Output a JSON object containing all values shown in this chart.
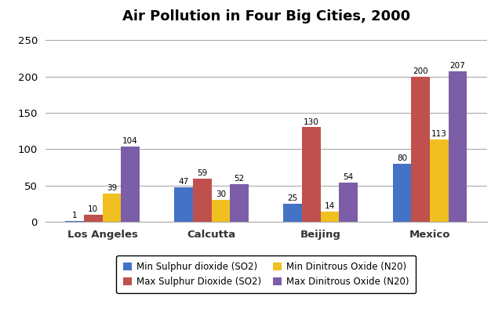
{
  "title": "Air Pollution in Four Big Cities, 2000",
  "cities": [
    "Los Angeles",
    "Calcutta",
    "Beijing",
    "Mexico"
  ],
  "series": [
    {
      "label": "Min Sulphur dioxide (SO2)",
      "color": "#4472C4",
      "values": [
        1,
        47,
        25,
        80
      ]
    },
    {
      "label": "Max Sulphur Dioxide (SO2)",
      "color": "#C0504D",
      "values": [
        10,
        59,
        130,
        200
      ]
    },
    {
      "label": "Min Dinitrous Oxide (N20)",
      "color": "#F0C020",
      "values": [
        39,
        30,
        14,
        113
      ]
    },
    {
      "label": "Max Dinitrous Oxide (N20)",
      "color": "#7B5EA7",
      "values": [
        104,
        52,
        54,
        207
      ]
    }
  ],
  "ylim": [
    0,
    265
  ],
  "yticks": [
    0,
    50,
    100,
    150,
    200,
    250
  ],
  "bar_width": 0.17,
  "title_fontsize": 13,
  "tick_fontsize": 9.5,
  "legend_fontsize": 8.5,
  "value_fontsize": 7.5,
  "grid_color": "#AAAAAA",
  "background_color": "#FFFFFF"
}
